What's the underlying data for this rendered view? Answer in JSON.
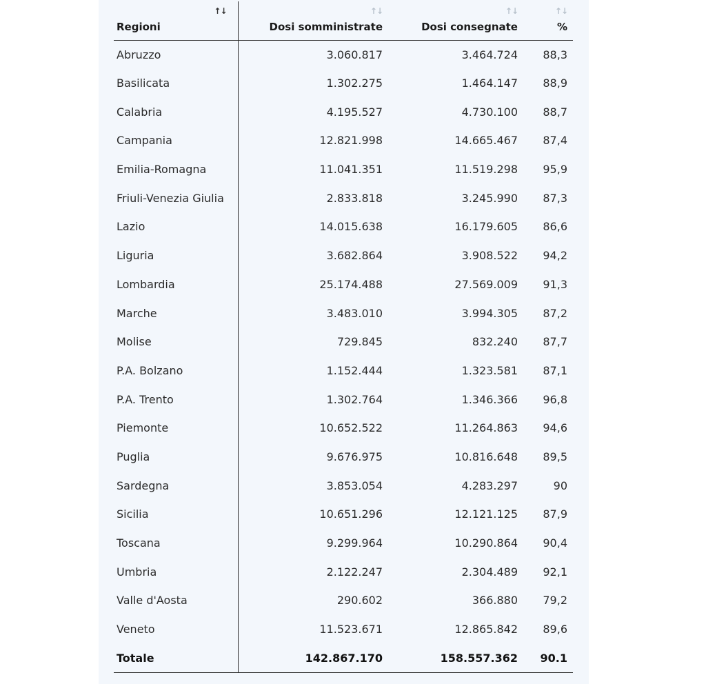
{
  "table": {
    "headers": {
      "region": "Regioni",
      "administered": "Dosi somministrate",
      "delivered": "Dosi consegnate",
      "percent": "%"
    },
    "sort_glyph": "↑↓",
    "rows": [
      {
        "region": "Abruzzo",
        "administered": "3.060.817",
        "delivered": "3.464.724",
        "percent": "88,3"
      },
      {
        "region": "Basilicata",
        "administered": "1.302.275",
        "delivered": "1.464.147",
        "percent": "88,9"
      },
      {
        "region": "Calabria",
        "administered": "4.195.527",
        "delivered": "4.730.100",
        "percent": "88,7"
      },
      {
        "region": "Campania",
        "administered": "12.821.998",
        "delivered": "14.665.467",
        "percent": "87,4"
      },
      {
        "region": "Emilia-Romagna",
        "administered": "11.041.351",
        "delivered": "11.519.298",
        "percent": "95,9"
      },
      {
        "region": "Friuli-Venezia Giulia",
        "administered": "2.833.818",
        "delivered": "3.245.990",
        "percent": "87,3"
      },
      {
        "region": "Lazio",
        "administered": "14.015.638",
        "delivered": "16.179.605",
        "percent": "86,6"
      },
      {
        "region": "Liguria",
        "administered": "3.682.864",
        "delivered": "3.908.522",
        "percent": "94,2"
      },
      {
        "region": "Lombardia",
        "administered": "25.174.488",
        "delivered": "27.569.009",
        "percent": "91,3"
      },
      {
        "region": "Marche",
        "administered": "3.483.010",
        "delivered": "3.994.305",
        "percent": "87,2"
      },
      {
        "region": "Molise",
        "administered": "729.845",
        "delivered": "832.240",
        "percent": "87,7"
      },
      {
        "region": "P.A. Bolzano",
        "administered": "1.152.444",
        "delivered": "1.323.581",
        "percent": "87,1"
      },
      {
        "region": "P.A. Trento",
        "administered": "1.302.764",
        "delivered": "1.346.366",
        "percent": "96,8"
      },
      {
        "region": "Piemonte",
        "administered": "10.652.522",
        "delivered": "11.264.863",
        "percent": "94,6"
      },
      {
        "region": "Puglia",
        "administered": "9.676.975",
        "delivered": "10.816.648",
        "percent": "89,5"
      },
      {
        "region": "Sardegna",
        "administered": "3.853.054",
        "delivered": "4.283.297",
        "percent": "90"
      },
      {
        "region": "Sicilia",
        "administered": "10.651.296",
        "delivered": "12.121.125",
        "percent": "87,9"
      },
      {
        "region": "Toscana",
        "administered": "9.299.964",
        "delivered": "10.290.864",
        "percent": "90,4"
      },
      {
        "region": "Umbria",
        "administered": "2.122.247",
        "delivered": "2.304.489",
        "percent": "92,1"
      },
      {
        "region": "Valle d'Aosta",
        "administered": "290.602",
        "delivered": "366.880",
        "percent": "79,2"
      },
      {
        "region": "Veneto",
        "administered": "11.523.671",
        "delivered": "12.865.842",
        "percent": "89,6"
      }
    ],
    "total": {
      "region": "Totale",
      "administered": "142.867.170",
      "delivered": "158.557.362",
      "percent": "90.1"
    }
  },
  "colors": {
    "panel_bg": "#f3f7fc",
    "rule": "#2a2a2a",
    "sort_icon_inactive": "#b8c2cc",
    "sort_icon_active": "#333333"
  }
}
